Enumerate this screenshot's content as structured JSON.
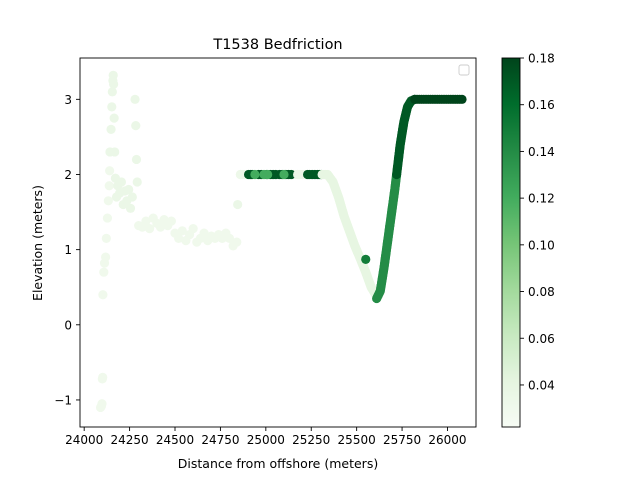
{
  "chart_data": {
    "type": "scatter",
    "title": "T1538 Bedfriction",
    "xlabel": "Distance from offshore (meters)",
    "ylabel": "Elevation (meters)",
    "xlim": [
      23977,
      26157
    ],
    "ylim": [
      -1.36,
      3.55
    ],
    "xticks": [
      24000,
      24250,
      24500,
      24750,
      25000,
      25250,
      25500,
      25750,
      26000
    ],
    "xtick_labels": [
      "24000",
      "24250",
      "24500",
      "24750",
      "25000",
      "25250",
      "25500",
      "25750",
      "26000"
    ],
    "yticks": [
      -1,
      0,
      1,
      2,
      3
    ],
    "ytick_labels": [
      "−1",
      "0",
      "1",
      "2",
      "3"
    ],
    "grid": false,
    "legend": {
      "position": "top-right",
      "entries": []
    },
    "colorbar": {
      "cmap": "Greens",
      "min": 0.022,
      "max": 0.18,
      "ticks": [
        0.04,
        0.06,
        0.08,
        0.1,
        0.12,
        0.14,
        0.16,
        0.18
      ],
      "tick_labels": [
        "0.04",
        "0.06",
        "0.08",
        "0.10",
        "0.12",
        "0.14",
        "0.16",
        "0.18"
      ]
    },
    "segments": [
      {
        "kind": "points",
        "x": [
          24090,
          24095,
          24098,
          24100,
          24102
        ],
        "y": [
          -1.1,
          -1.08,
          -1.05,
          -0.72,
          -0.7
        ],
        "c": 0.03
      },
      {
        "kind": "points",
        "x": [
          24103,
          24108,
          24112,
          24118,
          24122,
          24128,
          24133,
          24138,
          24140
        ],
        "y": [
          0.4,
          0.7,
          0.82,
          0.9,
          1.15,
          1.42,
          1.65,
          1.85,
          2.05
        ],
        "c": 0.03
      },
      {
        "kind": "points",
        "x": [
          24142,
          24148,
          24152,
          24155,
          24158,
          24160,
          24162,
          24165,
          24168,
          24172,
          24178,
          24185,
          24195,
          24205,
          24215,
          24225,
          24235,
          24245,
          24255,
          24265
        ],
        "y": [
          2.3,
          2.6,
          2.9,
          3.1,
          3.25,
          3.32,
          3.2,
          2.75,
          2.3,
          1.95,
          1.7,
          1.85,
          1.75,
          1.9,
          1.6,
          1.78,
          1.65,
          1.8,
          1.55,
          1.7
        ],
        "c": 0.035
      },
      {
        "kind": "points",
        "x": [
          24280,
          24284,
          24288,
          24292
        ],
        "y": [
          3.0,
          2.65,
          2.2,
          1.9
        ],
        "c": 0.035
      },
      {
        "kind": "points",
        "x": [
          24300,
          24320,
          24340,
          24360,
          24380,
          24400,
          24420,
          24440,
          24460,
          24480,
          24500,
          24520,
          24540,
          24560,
          24580,
          24600,
          24620,
          24640,
          24660,
          24680,
          24700,
          24720,
          24740,
          24760,
          24780,
          24800,
          24820,
          24840
        ],
        "y": [
          1.32,
          1.3,
          1.38,
          1.28,
          1.42,
          1.35,
          1.3,
          1.4,
          1.32,
          1.38,
          1.22,
          1.15,
          1.25,
          1.12,
          1.2,
          1.28,
          1.1,
          1.15,
          1.22,
          1.12,
          1.18,
          1.15,
          1.2,
          1.15,
          1.22,
          1.15,
          1.05,
          1.1
        ],
        "c": 0.03
      },
      {
        "kind": "points",
        "x": [
          24845,
          24860
        ],
        "y": [
          1.6,
          2.0
        ],
        "c": 0.035
      },
      {
        "kind": "band",
        "x0": 24860,
        "x1": 25175,
        "y": 2.0,
        "c": 0.033
      },
      {
        "kind": "points",
        "x": [
          24905,
          24915,
          24925,
          24960,
          24975,
          25005,
          25025,
          25040,
          25055,
          25075,
          25090,
          25110,
          25125,
          25140
        ],
        "y": [
          2.0,
          2.0,
          2.0,
          2.0,
          2.0,
          2.0,
          2.0,
          2.0,
          2.0,
          2.0,
          2.0,
          2.0,
          2.0,
          2.0
        ],
        "c": 0.17
      },
      {
        "kind": "points",
        "x": [
          24940,
          24990,
          25010,
          25100
        ],
        "y": [
          2.0,
          2.0,
          2.0,
          2.0
        ],
        "c": 0.12
      },
      {
        "kind": "band",
        "x0": 25175,
        "x1": 25225,
        "y": 2.0,
        "c": 0.035
      },
      {
        "kind": "points",
        "x": [
          25230,
          25240,
          25255,
          25270,
          25285,
          25295,
          25305
        ],
        "y": [
          2.0,
          2.0,
          2.0,
          2.0,
          2.0,
          2.0,
          2.0
        ],
        "c": 0.17
      },
      {
        "kind": "curve",
        "x": [
          25310,
          25340,
          25370,
          25400,
          25430,
          25460,
          25490,
          25520,
          25550,
          25580,
          25610
        ],
        "y": [
          2.0,
          2.0,
          1.9,
          1.7,
          1.45,
          1.25,
          1.05,
          0.88,
          0.7,
          0.5,
          0.38
        ],
        "c": 0.04
      },
      {
        "kind": "points",
        "x": [
          25550
        ],
        "y": [
          0.87
        ],
        "c": 0.15
      },
      {
        "kind": "curve",
        "x": [
          25610,
          25630,
          25650,
          25670,
          25690,
          25710,
          25720
        ],
        "y": [
          0.35,
          0.45,
          0.75,
          1.1,
          1.45,
          1.8,
          2.0
        ],
        "c": 0.14
      },
      {
        "kind": "curve",
        "x": [
          25720,
          25740,
          25760,
          25780,
          25800,
          25820
        ],
        "y": [
          2.0,
          2.4,
          2.7,
          2.9,
          2.98,
          3.0
        ],
        "c": 0.17
      },
      {
        "kind": "band",
        "x0": 25820,
        "x1": 26080,
        "y": 3.0,
        "c": 0.18
      }
    ]
  }
}
